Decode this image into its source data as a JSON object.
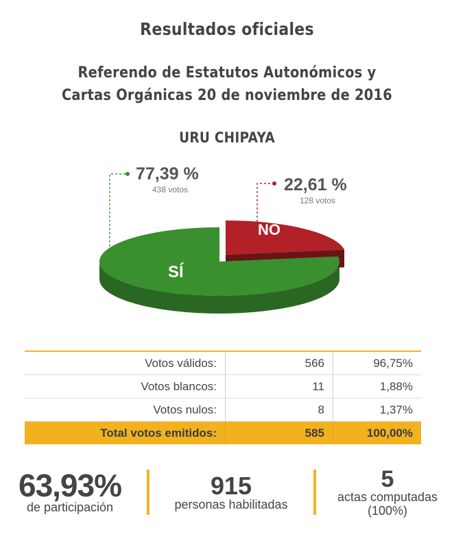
{
  "header": {
    "title": "Resultados oficiales",
    "subtitle_line1": "Referendo de Estatutos Autonómicos y",
    "subtitle_line2": "Cartas Orgánicas 20 de noviembre de 2016",
    "region": "URU CHIPAYA"
  },
  "chart_data": {
    "type": "pie",
    "slices": [
      {
        "label": "SÍ",
        "percent": 77.39,
        "percent_text": "77,39 %",
        "votes": 438,
        "votes_text": "438 votos",
        "color": "#3a8f2f"
      },
      {
        "label": "NO",
        "percent": 22.61,
        "percent_text": "22,61 %",
        "votes": 128,
        "votes_text": "128 votos",
        "color": "#b22028"
      }
    ]
  },
  "table": {
    "rows": [
      {
        "label": "Votos válidos:",
        "count": "566",
        "percent": "96,75%"
      },
      {
        "label": "Votos blancos:",
        "count": "11",
        "percent": "1,88%"
      },
      {
        "label": "Votos nulos:",
        "count": "8",
        "percent": "1,37%"
      }
    ],
    "total": {
      "label": "Total votos emitidos:",
      "count": "585",
      "percent": "100,00%"
    }
  },
  "stats": {
    "participation": {
      "value": "63,93%",
      "caption": "de participación"
    },
    "voters": {
      "value": "915",
      "caption": "personas habilitadas"
    },
    "acts": {
      "value": "5",
      "caption_line1": "actas computadas",
      "caption_line2": "(100%)"
    }
  },
  "colors": {
    "accent": "#f2b320",
    "yes": "#3a8f2f",
    "no": "#b22028"
  }
}
